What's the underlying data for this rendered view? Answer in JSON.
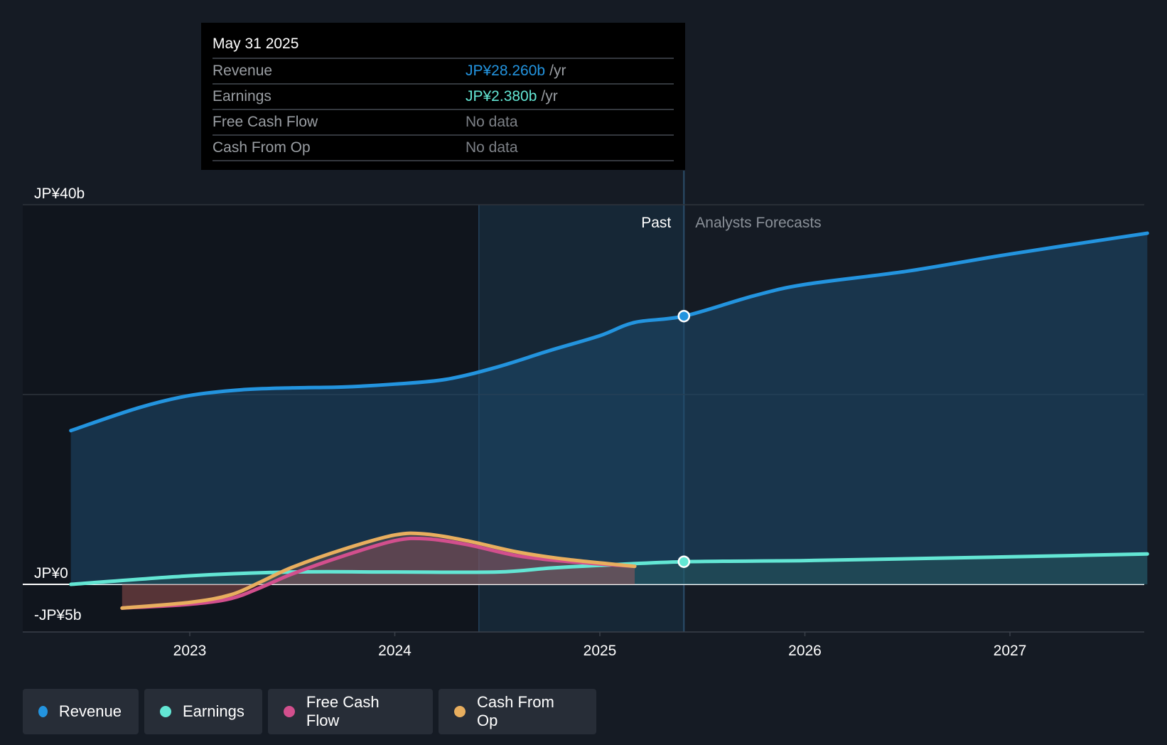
{
  "tooltip": {
    "date": "May 31 2025",
    "rows": [
      {
        "label": "Revenue",
        "value": "JP¥28.260b",
        "unit": "/yr",
        "color": "#2394df"
      },
      {
        "label": "Earnings",
        "value": "JP¥2.380b",
        "unit": "/yr",
        "color": "#63e6d4"
      },
      {
        "label": "Free Cash Flow",
        "value": "No data",
        "unit": "",
        "color": "#7d8187"
      },
      {
        "label": "Cash From Op",
        "value": "No data",
        "unit": "",
        "color": "#7d8187"
      }
    ]
  },
  "legend": [
    {
      "label": "Revenue",
      "color": "#2394df"
    },
    {
      "label": "Earnings",
      "color": "#63e6d4"
    },
    {
      "label": "Free Cash Flow",
      "color": "#d24f8d"
    },
    {
      "label": "Cash From Op",
      "color": "#e8ae5e"
    }
  ],
  "chart_data": {
    "type": "area",
    "x_ticks": [
      "2023",
      "2024",
      "2025",
      "2026",
      "2027"
    ],
    "y_ticks": [
      {
        "label": "JP¥40b",
        "value": 40
      },
      {
        "label": "JP¥0",
        "value": 0
      },
      {
        "label": "-JP¥5b",
        "value": -5
      }
    ],
    "ylim": [
      -5,
      40
    ],
    "grid": true,
    "past_label": "Past",
    "forecast_label": "Analysts Forecasts",
    "highlight_date": 2025.41,
    "series": [
      {
        "name": "Revenue",
        "color": "#2394df",
        "x": [
          2022.42,
          2022.75,
          2023.0,
          2023.25,
          2023.5,
          2023.75,
          2024.0,
          2024.25,
          2024.5,
          2024.75,
          2025.0,
          2025.17,
          2025.41,
          2025.75,
          2026.0,
          2026.5,
          2027.0,
          2027.67
        ],
        "y": [
          16.2,
          18.6,
          19.9,
          20.5,
          20.7,
          20.8,
          21.1,
          21.6,
          22.9,
          24.6,
          26.2,
          27.6,
          28.26,
          30.4,
          31.6,
          33.0,
          34.8,
          37.0
        ]
      },
      {
        "name": "Earnings",
        "color": "#63e6d4",
        "x": [
          2022.42,
          2023.0,
          2023.5,
          2024.0,
          2024.5,
          2024.75,
          2025.0,
          2025.41,
          2026.0,
          2026.5,
          2027.0,
          2027.67
        ],
        "y": [
          0.0,
          0.9,
          1.3,
          1.3,
          1.3,
          1.7,
          2.0,
          2.38,
          2.5,
          2.7,
          2.9,
          3.2
        ]
      },
      {
        "name": "Free Cash Flow",
        "color": "#d24f8d",
        "x": [
          2022.67,
          2023.0,
          2023.2,
          2023.35,
          2023.5,
          2023.75,
          2024.0,
          2024.15,
          2024.35,
          2024.6,
          2024.85,
          2025.17
        ],
        "y": [
          -2.5,
          -2.1,
          -1.5,
          -0.3,
          1.1,
          3.0,
          4.6,
          4.8,
          4.2,
          3.0,
          2.4,
          1.9
        ]
      },
      {
        "name": "Cash From Op",
        "color": "#e8ae5e",
        "x": [
          2022.67,
          2023.0,
          2023.2,
          2023.35,
          2023.5,
          2023.75,
          2024.0,
          2024.15,
          2024.35,
          2024.6,
          2024.85,
          2025.17
        ],
        "y": [
          -2.5,
          -1.9,
          -1.1,
          0.3,
          1.8,
          3.7,
          5.2,
          5.3,
          4.6,
          3.4,
          2.6,
          1.9
        ]
      }
    ]
  }
}
